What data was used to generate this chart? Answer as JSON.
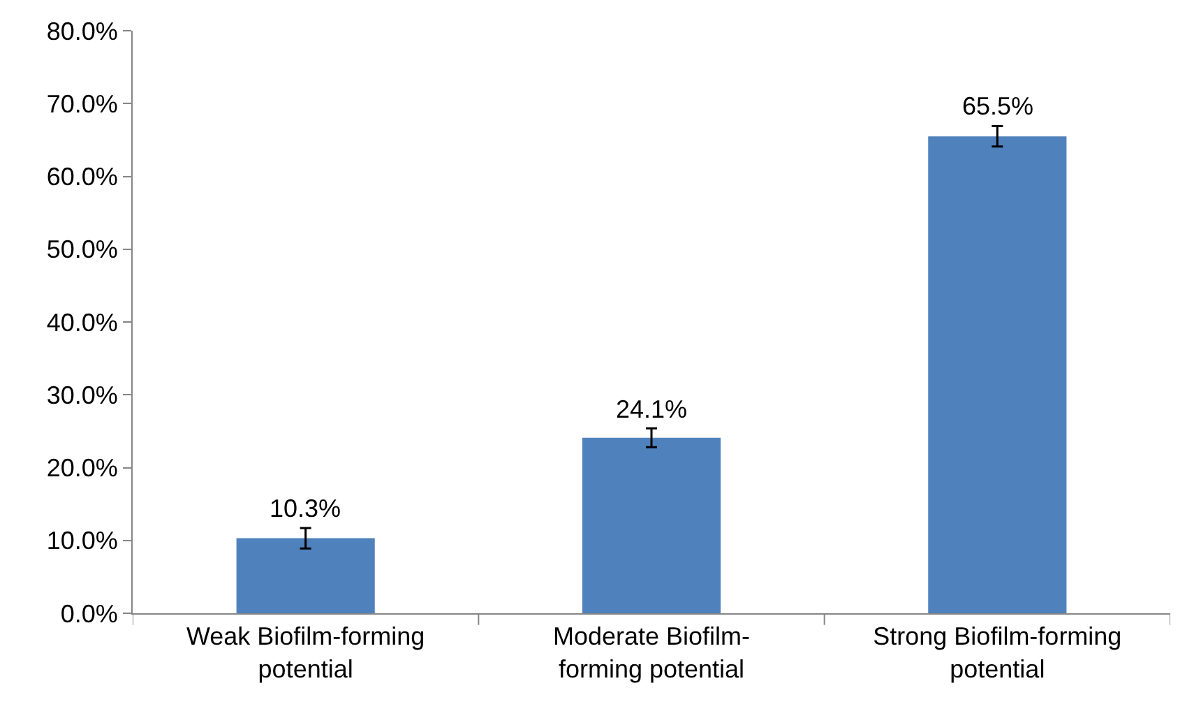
{
  "chart_data": {
    "type": "bar",
    "categories": [
      "Weak Biofilm-forming potential",
      "Moderate Biofilm-forming potential",
      "Strong Biofilm-forming potential"
    ],
    "values": [
      10.3,
      24.1,
      65.5
    ],
    "color": "#4f81bd",
    "errors": [
      1.4,
      1.3,
      1.4
    ],
    "value_labels": [
      "10.3%",
      "24.1%",
      "65.5%"
    ],
    "ylim": [
      0,
      80
    ],
    "yticks": [
      {
        "value": 0,
        "label": "0.0%"
      },
      {
        "value": 10,
        "label": "10.0%"
      },
      {
        "value": 20,
        "label": "20.0%"
      },
      {
        "value": 30,
        "label": "30.0%"
      },
      {
        "value": 40,
        "label": "40.0%"
      },
      {
        "value": 50,
        "label": "50.0%"
      },
      {
        "value": 60,
        "label": "60.0%"
      },
      {
        "value": 70,
        "label": "70.0%"
      },
      {
        "value": 80,
        "label": "80.0%"
      }
    ],
    "grid": false
  }
}
